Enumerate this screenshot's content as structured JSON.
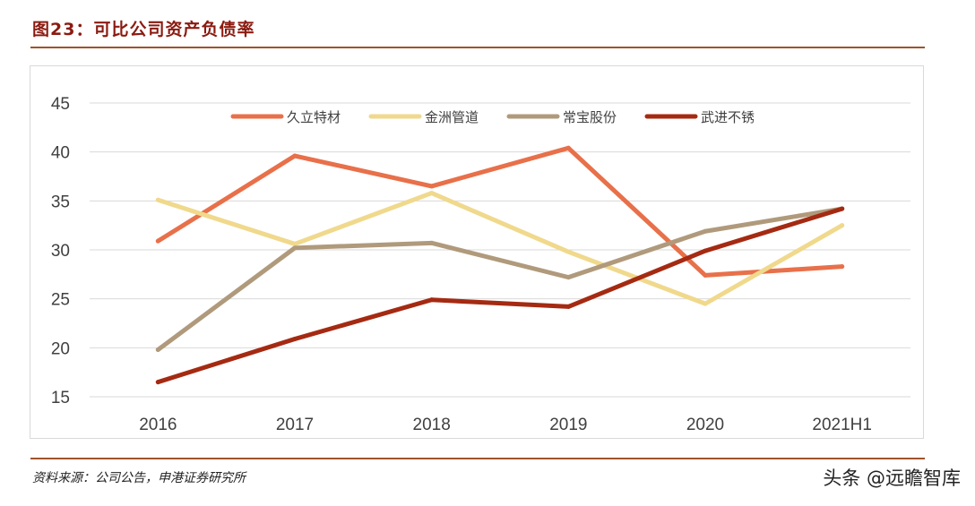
{
  "title": "图23：可比公司资产负债率",
  "source": "资料来源：公司公告，申港证券研究所",
  "watermark": "头条 @远瞻智库",
  "chart_data": {
    "type": "line",
    "categories": [
      "2016",
      "2017",
      "2018",
      "2019",
      "2020",
      "2021H1"
    ],
    "ylim": [
      15,
      45
    ],
    "yticks": [
      15,
      20,
      25,
      30,
      35,
      40,
      45
    ],
    "grid": true,
    "legend_position": "top",
    "series": [
      {
        "name": "久立特材",
        "color": "#e8704a",
        "values": [
          30.9,
          39.6,
          36.5,
          40.4,
          27.4,
          28.3
        ]
      },
      {
        "name": "金洲管道",
        "color": "#f0d98c",
        "values": [
          35.1,
          30.6,
          35.8,
          29.8,
          24.5,
          32.5
        ]
      },
      {
        "name": "常宝股份",
        "color": "#b09a7c",
        "values": [
          19.8,
          30.2,
          30.7,
          27.2,
          31.9,
          34.2
        ]
      },
      {
        "name": "武进不锈",
        "color": "#a52a12",
        "values": [
          16.5,
          20.9,
          24.9,
          24.2,
          29.9,
          34.2
        ]
      }
    ]
  }
}
